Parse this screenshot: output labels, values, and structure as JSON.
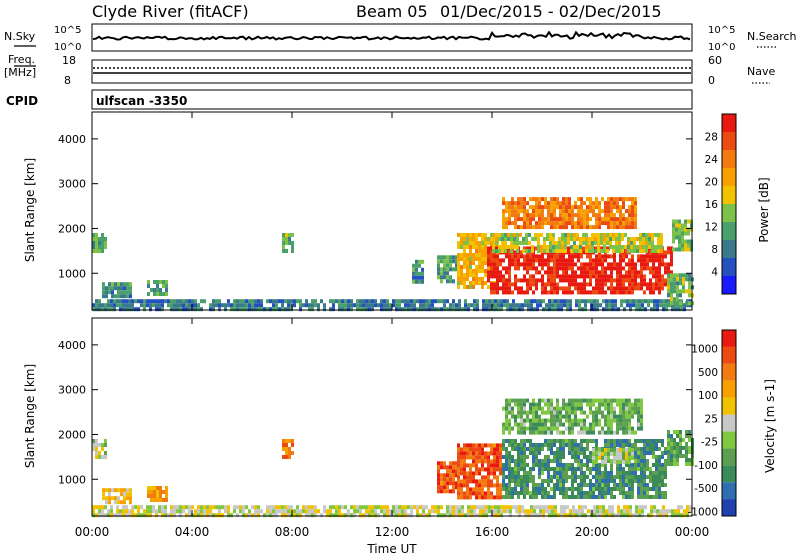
{
  "header": {
    "station": "Clyde River (fitACF)",
    "beam": "Beam 05",
    "date_range": "01/Dec/2015 - 02/Dec/2015"
  },
  "strip1": {
    "left_label": "N.Sky",
    "right_label": "N.Search",
    "left_ticks": [
      "10^5",
      "10^0"
    ],
    "right_ticks": [
      "10^5",
      "10^0"
    ]
  },
  "strip2": {
    "left_label_top": "Freq.",
    "left_label_bottom": "[MHz]",
    "right_label": "Nave",
    "left_ticks": [
      "18",
      "8"
    ],
    "right_ticks": [
      "60",
      "0"
    ]
  },
  "cpid": {
    "label": "CPID",
    "value": "ulfscan -3350"
  },
  "x_axis": {
    "label": "Time UT",
    "ticks": [
      "00:00",
      "04:00",
      "08:00",
      "12:00",
      "16:00",
      "20:00",
      "00:00"
    ]
  },
  "chart_data": [
    {
      "type": "heatmap",
      "name": "power",
      "ylabel": "Slant Range [km]",
      "yticks": [
        1000,
        2000,
        3000,
        4000
      ],
      "ylim": [
        180,
        4600
      ],
      "xlim": [
        0,
        24
      ],
      "colorbar": {
        "label": "Power [dB]",
        "ticks": [
          "4",
          "8",
          "12",
          "16",
          "20",
          "24",
          "28"
        ],
        "colors": [
          "#1a1aff",
          "#2450c0",
          "#3a7a8a",
          "#4aa06a",
          "#7cc14a",
          "#f2c200",
          "#f7a000",
          "#f27a10",
          "#ec4a10",
          "#e81a10"
        ]
      },
      "regions": [
        {
          "t0": 0.0,
          "t1": 24.0,
          "r0": 180,
          "r1": 420,
          "level": 0.25
        },
        {
          "t0": 0.0,
          "t1": 0.5,
          "r0": 1500,
          "r1": 1900,
          "level": 0.35
        },
        {
          "t0": 0.4,
          "t1": 1.5,
          "r0": 450,
          "r1": 800,
          "level": 0.3
        },
        {
          "t0": 2.2,
          "t1": 3.0,
          "r0": 550,
          "r1": 850,
          "level": 0.35
        },
        {
          "t0": 7.6,
          "t1": 8.0,
          "r0": 1500,
          "r1": 1900,
          "level": 0.4
        },
        {
          "t0": 12.8,
          "t1": 13.2,
          "r0": 800,
          "r1": 1300,
          "level": 0.3
        },
        {
          "t0": 13.8,
          "t1": 14.6,
          "r0": 800,
          "r1": 1400,
          "level": 0.35
        },
        {
          "t0": 14.6,
          "t1": 16.2,
          "r0": 700,
          "r1": 1900,
          "level": 0.6
        },
        {
          "t0": 15.8,
          "t1": 23.2,
          "r0": 600,
          "r1": 1600,
          "level": 0.95
        },
        {
          "t0": 16.0,
          "t1": 22.8,
          "r0": 1500,
          "r1": 1900,
          "level": 0.5
        },
        {
          "t0": 16.4,
          "t1": 21.8,
          "r0": 2000,
          "r1": 2700,
          "level": 0.75
        },
        {
          "t0": 23.2,
          "t1": 24.0,
          "r0": 1500,
          "r1": 2200,
          "level": 0.45
        },
        {
          "t0": 23.0,
          "t1": 24.0,
          "r0": 300,
          "r1": 1000,
          "level": 0.4
        }
      ]
    },
    {
      "type": "heatmap",
      "name": "velocity",
      "ylabel": "Slant Range [km]",
      "yticks": [
        1000,
        2000,
        3000,
        4000
      ],
      "ylim": [
        180,
        4600
      ],
      "xlim": [
        0,
        24
      ],
      "colorbar": {
        "label": "Velocity [m s-1]",
        "ticks": [
          "1000",
          "500",
          "100",
          "25",
          "-25",
          "-100",
          "-500",
          "-1000"
        ],
        "colors": [
          "#2040b0",
          "#2f6fb0",
          "#3a8a5a",
          "#5aa050",
          "#80c840",
          "#c8c8c8",
          "#f2c200",
          "#f7a000",
          "#f27a10",
          "#ec4a10",
          "#e81a10"
        ]
      },
      "regions": [
        {
          "t0": 0.0,
          "t1": 24.0,
          "r0": 180,
          "r1": 420,
          "level": 0.5
        },
        {
          "t0": 0.0,
          "t1": 0.5,
          "r0": 1500,
          "r1": 1900,
          "level": 0.45
        },
        {
          "t0": 0.4,
          "t1": 1.5,
          "r0": 450,
          "r1": 800,
          "level": 0.6
        },
        {
          "t0": 2.2,
          "t1": 3.0,
          "r0": 550,
          "r1": 850,
          "level": 0.7
        },
        {
          "t0": 7.6,
          "t1": 8.0,
          "r0": 1500,
          "r1": 1900,
          "level": 0.8
        },
        {
          "t0": 13.8,
          "t1": 14.6,
          "r0": 700,
          "r1": 1400,
          "level": 0.85
        },
        {
          "t0": 14.6,
          "t1": 16.4,
          "r0": 600,
          "r1": 1800,
          "level": 0.85
        },
        {
          "t0": 16.4,
          "t1": 23.0,
          "r0": 600,
          "r1": 1900,
          "level": 0.25
        },
        {
          "t0": 16.4,
          "t1": 22.0,
          "r0": 2000,
          "r1": 2800,
          "level": 0.35
        },
        {
          "t0": 20.0,
          "t1": 21.6,
          "r0": 1400,
          "r1": 1700,
          "level": 0.45
        },
        {
          "t0": 23.0,
          "t1": 24.0,
          "r0": 1300,
          "r1": 2100,
          "level": 0.3
        }
      ]
    }
  ]
}
